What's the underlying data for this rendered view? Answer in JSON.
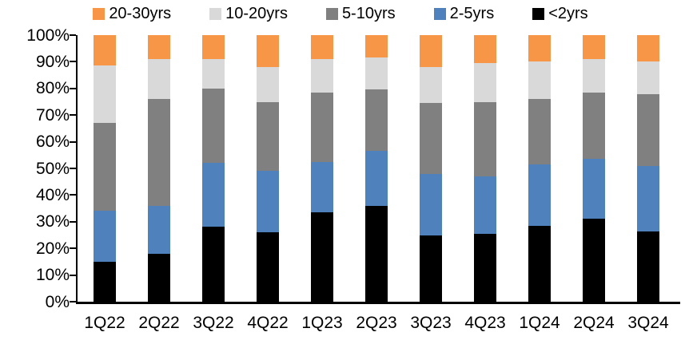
{
  "chart_data": {
    "type": "bar",
    "variant": "stacked-100-percent",
    "title": "",
    "xlabel": "",
    "ylabel": "",
    "unit": "%",
    "grid": false,
    "legend_position": "top",
    "legend_order": [
      "20-30yrs",
      "10-20yrs",
      "5-10yrs",
      "2-5yrs",
      "<2yrs"
    ],
    "ylim": [
      0,
      100
    ],
    "ytick_labels": [
      "0%",
      "10%",
      "20%",
      "30%",
      "40%",
      "50%",
      "60%",
      "70%",
      "80%",
      "90%",
      "100%"
    ],
    "categories": [
      "1Q22",
      "2Q22",
      "3Q22",
      "4Q22",
      "1Q23",
      "2Q23",
      "3Q23",
      "4Q23",
      "1Q24",
      "2Q24",
      "3Q24"
    ],
    "series": [
      {
        "name": "<2yrs",
        "color": "#000000",
        "values": [
          15,
          18,
          28,
          26,
          33.5,
          36,
          25,
          25.5,
          28.5,
          31,
          26.5
        ]
      },
      {
        "name": "2-5yrs",
        "color": "#4F81BD",
        "values": [
          19,
          18,
          24,
          23,
          19,
          20.5,
          23,
          21.5,
          23,
          22.5,
          24.5
        ]
      },
      {
        "name": "5-10yrs",
        "color": "#808080",
        "values": [
          33,
          40,
          28,
          26,
          26,
          23,
          26.5,
          28,
          24.5,
          25,
          27
        ]
      },
      {
        "name": "10-20yrs",
        "color": "#D9D9D9",
        "values": [
          21.5,
          15,
          11,
          13,
          12.5,
          12,
          13.5,
          14.5,
          14,
          12.5,
          12
        ]
      },
      {
        "name": "20-30yrs",
        "color": "#F79646",
        "values": [
          11.5,
          9,
          9,
          12,
          9,
          8.5,
          12,
          10.5,
          10,
          9,
          10
        ]
      }
    ]
  }
}
